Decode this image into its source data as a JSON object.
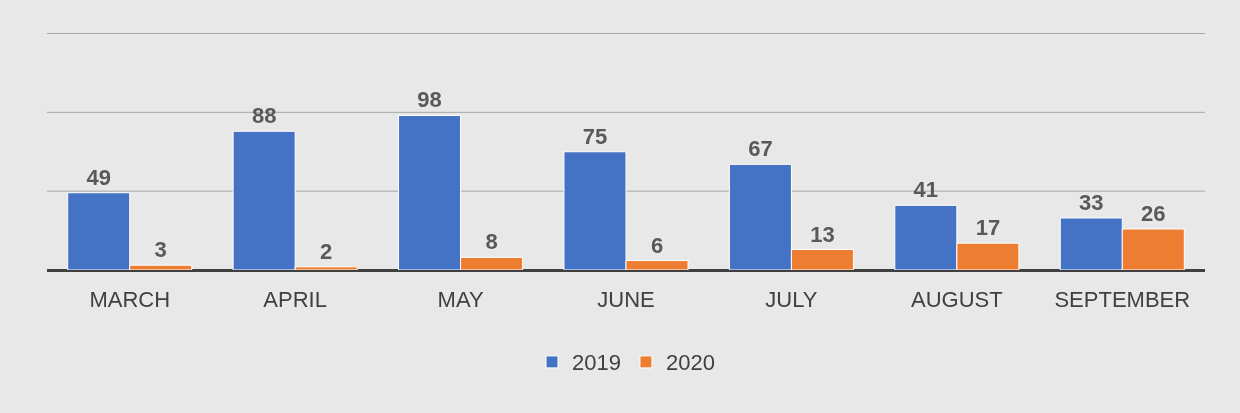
{
  "chart_data": {
    "type": "bar",
    "categories": [
      "MARCH",
      "APRIL",
      "MAY",
      "JUNE",
      "JULY",
      "AUGUST",
      "SEPTEMBER"
    ],
    "series": [
      {
        "name": "2019",
        "color": "#4472c4",
        "values": [
          49,
          88,
          98,
          75,
          67,
          41,
          33
        ]
      },
      {
        "name": "2020",
        "color": "#ed7d31",
        "values": [
          3,
          2,
          8,
          6,
          13,
          17,
          26
        ]
      }
    ],
    "ref_lines": [
      {
        "axis": "y",
        "value": 50,
        "color": "#a6a6a6"
      },
      {
        "axis": "y",
        "value": 100,
        "color": "#a6a6a6"
      },
      {
        "axis": "y",
        "value": 150,
        "color": "#a6a6a6"
      }
    ],
    "tick_labels": "x",
    "legend": "bottom",
    "data_labels": true
  }
}
